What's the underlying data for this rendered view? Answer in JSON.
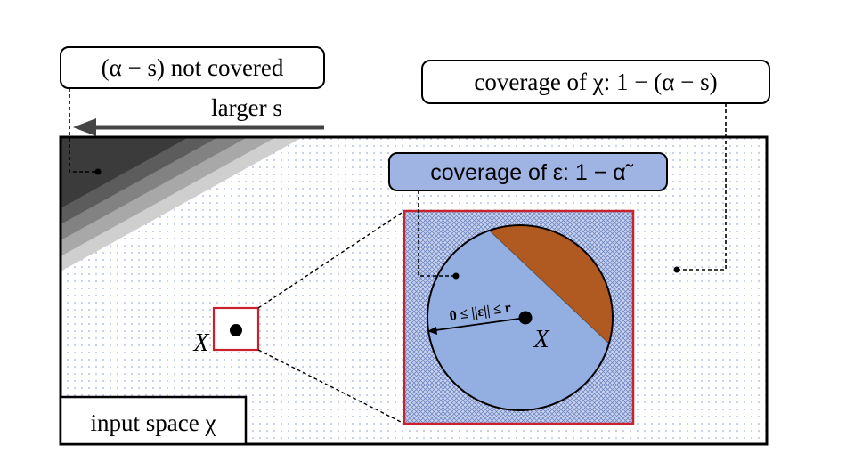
{
  "labels": {
    "not_covered_label": "(α − s) not covered",
    "larger_s": "larger s",
    "coverage_chi": "coverage of χ: 1 − (α − s)",
    "coverage_eps": "coverage of ε: 1 − α̃",
    "radius_label": "0 ≤ ||ε|| ≤ r",
    "point_x_left": "X",
    "point_x_center": "X",
    "input_space": "input space χ"
  },
  "colors": {
    "dot_grid": "#9fb0d6",
    "circle_fill": "#93aee0",
    "slice_fill": "#b05a22",
    "highlight_border": "#c8232c",
    "coverage_eps_fill": "#9fb4e3",
    "shade_darkest": "#3b3b3b",
    "shade_dark": "#5c5c5c",
    "shade_mid": "#828282",
    "shade_light": "#a8a8a8",
    "shade_lightest": "#cfcfcf"
  }
}
